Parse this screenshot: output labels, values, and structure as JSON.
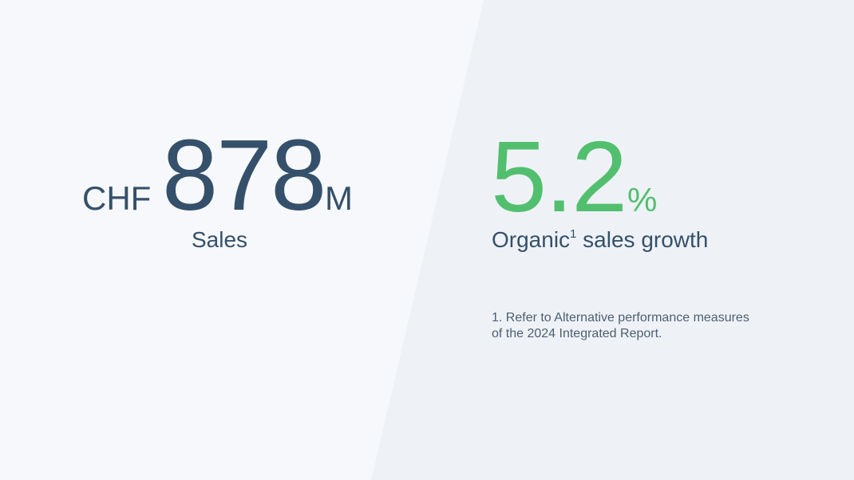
{
  "kpis": [
    {
      "prefix": "CHF",
      "value": 878,
      "suffix": "M",
      "label": "Sales"
    },
    {
      "value": 5.2,
      "suffix": "%",
      "label_parts": [
        "Organic",
        "1",
        " sales growth"
      ]
    }
  ],
  "footnote": {
    "lines": [
      "1. Refer to Alternative performance measures",
      "of the 2024 Integrated Report."
    ]
  }
}
